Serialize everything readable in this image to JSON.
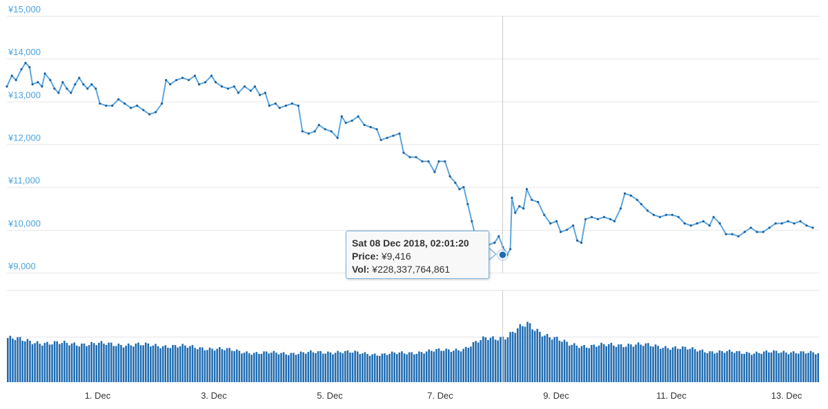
{
  "chart_data": {
    "type": "line",
    "currency_symbol": "¥",
    "y_ticks": [
      "¥15,000",
      "¥14,000",
      "¥13,000",
      "¥12,000",
      "¥11,000",
      "¥10,000",
      "¥9,000"
    ],
    "y_tick_values": [
      15000,
      14000,
      13000,
      12000,
      11000,
      10000,
      9000
    ],
    "ylim": [
      9000,
      15000
    ],
    "x_ticks": [
      "1. Dec",
      "3. Dec",
      "5. Dec",
      "7. Dec",
      "9. Dec",
      "11. Dec",
      "13. Dec"
    ],
    "x_tick_days": [
      1,
      3,
      5,
      7,
      9,
      11,
      13
    ],
    "xlim_days": [
      29.9,
      13.6
    ],
    "grid": true,
    "colors": {
      "line": "#5aa6e0",
      "marker": "#1f5f99",
      "volume": "#1f6bb0",
      "axis_text": "#4aa3df",
      "highlight": "#1f6bb0"
    },
    "price_series": {
      "name": "Price",
      "points": [
        [
          0.0,
          13350
        ],
        [
          0.12,
          13600
        ],
        [
          0.22,
          13500
        ],
        [
          0.35,
          13750
        ],
        [
          0.45,
          13900
        ],
        [
          0.55,
          13800
        ],
        [
          0.62,
          13400
        ],
        [
          0.75,
          13450
        ],
        [
          0.85,
          13350
        ],
        [
          0.92,
          13650
        ],
        [
          1.05,
          13500
        ],
        [
          1.15,
          13300
        ],
        [
          1.25,
          13200
        ],
        [
          1.35,
          13450
        ],
        [
          1.45,
          13300
        ],
        [
          1.55,
          13200
        ],
        [
          1.65,
          13400
        ],
        [
          1.75,
          13550
        ],
        [
          1.85,
          13400
        ],
        [
          1.95,
          13300
        ],
        [
          2.05,
          13400
        ],
        [
          2.15,
          13300
        ],
        [
          2.25,
          12950
        ],
        [
          2.4,
          12900
        ],
        [
          2.55,
          12900
        ],
        [
          2.7,
          13050
        ],
        [
          2.85,
          12950
        ],
        [
          3.0,
          12850
        ],
        [
          3.15,
          12900
        ],
        [
          3.3,
          12800
        ],
        [
          3.45,
          12700
        ],
        [
          3.6,
          12750
        ],
        [
          3.75,
          12950
        ],
        [
          3.85,
          13500
        ],
        [
          3.95,
          13400
        ],
        [
          4.1,
          13500
        ],
        [
          4.25,
          13550
        ],
        [
          4.4,
          13500
        ],
        [
          4.55,
          13600
        ],
        [
          4.65,
          13400
        ],
        [
          4.8,
          13450
        ],
        [
          4.95,
          13600
        ],
        [
          5.05,
          13450
        ],
        [
          5.2,
          13350
        ],
        [
          5.35,
          13300
        ],
        [
          5.5,
          13350
        ],
        [
          5.6,
          13200
        ],
        [
          5.75,
          13350
        ],
        [
          5.9,
          13250
        ],
        [
          6.0,
          13350
        ],
        [
          6.12,
          13150
        ],
        [
          6.25,
          13200
        ],
        [
          6.35,
          12900
        ],
        [
          6.5,
          12950
        ],
        [
          6.6,
          12850
        ],
        [
          6.75,
          12900
        ],
        [
          6.9,
          12950
        ],
        [
          7.05,
          12900
        ],
        [
          7.15,
          12300
        ],
        [
          7.3,
          12250
        ],
        [
          7.45,
          12300
        ],
        [
          7.55,
          12450
        ],
        [
          7.7,
          12350
        ],
        [
          7.85,
          12300
        ],
        [
          8.0,
          12150
        ],
        [
          8.1,
          12650
        ],
        [
          8.2,
          12500
        ],
        [
          8.35,
          12550
        ],
        [
          8.5,
          12650
        ],
        [
          8.65,
          12450
        ],
        [
          8.8,
          12400
        ],
        [
          8.95,
          12350
        ],
        [
          9.05,
          12100
        ],
        [
          9.2,
          12150
        ],
        [
          9.35,
          12200
        ],
        [
          9.5,
          12250
        ],
        [
          9.6,
          11800
        ],
        [
          9.75,
          11700
        ],
        [
          9.9,
          11700
        ],
        [
          10.05,
          11600
        ],
        [
          10.2,
          11600
        ],
        [
          10.35,
          11350
        ],
        [
          10.45,
          11600
        ],
        [
          10.6,
          11600
        ],
        [
          10.72,
          11250
        ],
        [
          10.85,
          11100
        ],
        [
          10.95,
          10950
        ],
        [
          11.05,
          11000
        ],
        [
          11.15,
          10600
        ],
        [
          11.25,
          10200
        ],
        [
          11.35,
          9800
        ],
        [
          11.5,
          9700
        ],
        [
          11.65,
          9650
        ],
        [
          11.8,
          9700
        ],
        [
          11.9,
          9850
        ],
        [
          12.0,
          9600
        ],
        [
          12.1,
          9416
        ],
        [
          12.18,
          9550
        ],
        [
          12.22,
          10750
        ],
        [
          12.3,
          10400
        ],
        [
          12.4,
          10550
        ],
        [
          12.5,
          10500
        ],
        [
          12.58,
          10950
        ],
        [
          12.7,
          10700
        ],
        [
          12.85,
          10650
        ],
        [
          13.0,
          10350
        ],
        [
          13.15,
          10150
        ],
        [
          13.3,
          10200
        ],
        [
          13.4,
          9950
        ],
        [
          13.55,
          10000
        ],
        [
          13.7,
          10100
        ],
        [
          13.8,
          9750
        ],
        [
          13.9,
          9700
        ],
        [
          14.0,
          10250
        ],
        [
          14.15,
          10300
        ],
        [
          14.3,
          10250
        ],
        [
          14.45,
          10300
        ],
        [
          14.6,
          10250
        ],
        [
          14.7,
          10200
        ],
        [
          14.85,
          10500
        ],
        [
          14.95,
          10850
        ],
        [
          15.1,
          10800
        ],
        [
          15.25,
          10700
        ],
        [
          15.35,
          10600
        ],
        [
          15.5,
          10450
        ],
        [
          15.65,
          10350
        ],
        [
          15.8,
          10300
        ],
        [
          15.95,
          10350
        ],
        [
          16.1,
          10350
        ],
        [
          16.25,
          10300
        ],
        [
          16.4,
          10150
        ],
        [
          16.55,
          10100
        ],
        [
          16.7,
          10150
        ],
        [
          16.85,
          10200
        ],
        [
          17.0,
          10100
        ],
        [
          17.1,
          10300
        ],
        [
          17.25,
          10150
        ],
        [
          17.4,
          9900
        ],
        [
          17.55,
          9900
        ],
        [
          17.7,
          9850
        ],
        [
          17.85,
          9950
        ],
        [
          18.0,
          10050
        ],
        [
          18.15,
          9950
        ],
        [
          18.3,
          9950
        ],
        [
          18.45,
          10050
        ],
        [
          18.6,
          10150
        ],
        [
          18.75,
          10150
        ],
        [
          18.9,
          10200
        ],
        [
          19.05,
          10150
        ],
        [
          19.2,
          10200
        ],
        [
          19.35,
          10100
        ],
        [
          19.5,
          10050
        ]
      ]
    },
    "volume_series": {
      "name": "Vol",
      "approx_daily_level": [
        [
          0.0,
          1.0
        ],
        [
          0.5,
          0.93
        ],
        [
          1.0,
          0.88
        ],
        [
          2.0,
          0.87
        ],
        [
          3.0,
          0.85
        ],
        [
          4.0,
          0.82
        ],
        [
          5.0,
          0.76
        ],
        [
          6.0,
          0.66
        ],
        [
          7.0,
          0.66
        ],
        [
          8.0,
          0.69
        ],
        [
          9.0,
          0.63
        ],
        [
          10.0,
          0.69
        ],
        [
          11.0,
          0.76
        ],
        [
          11.5,
          1.0
        ],
        [
          12.0,
          1.03
        ],
        [
          12.5,
          1.32
        ],
        [
          13.0,
          1.05
        ],
        [
          13.5,
          0.86
        ],
        [
          14.0,
          0.82
        ],
        [
          15.0,
          0.86
        ],
        [
          16.0,
          0.79
        ],
        [
          17.0,
          0.69
        ],
        [
          18.0,
          0.67
        ],
        [
          19.0,
          0.69
        ],
        [
          19.5,
          0.64
        ]
      ]
    },
    "tooltip": {
      "date": "Sat 08 Dec 2018, 02:01:20",
      "price_label": "Price:",
      "price_value": "¥9,416",
      "vol_label": "Vol:",
      "vol_value": "¥228,337,764,861",
      "x_day_offset": 12.1,
      "price": 9416
    }
  }
}
